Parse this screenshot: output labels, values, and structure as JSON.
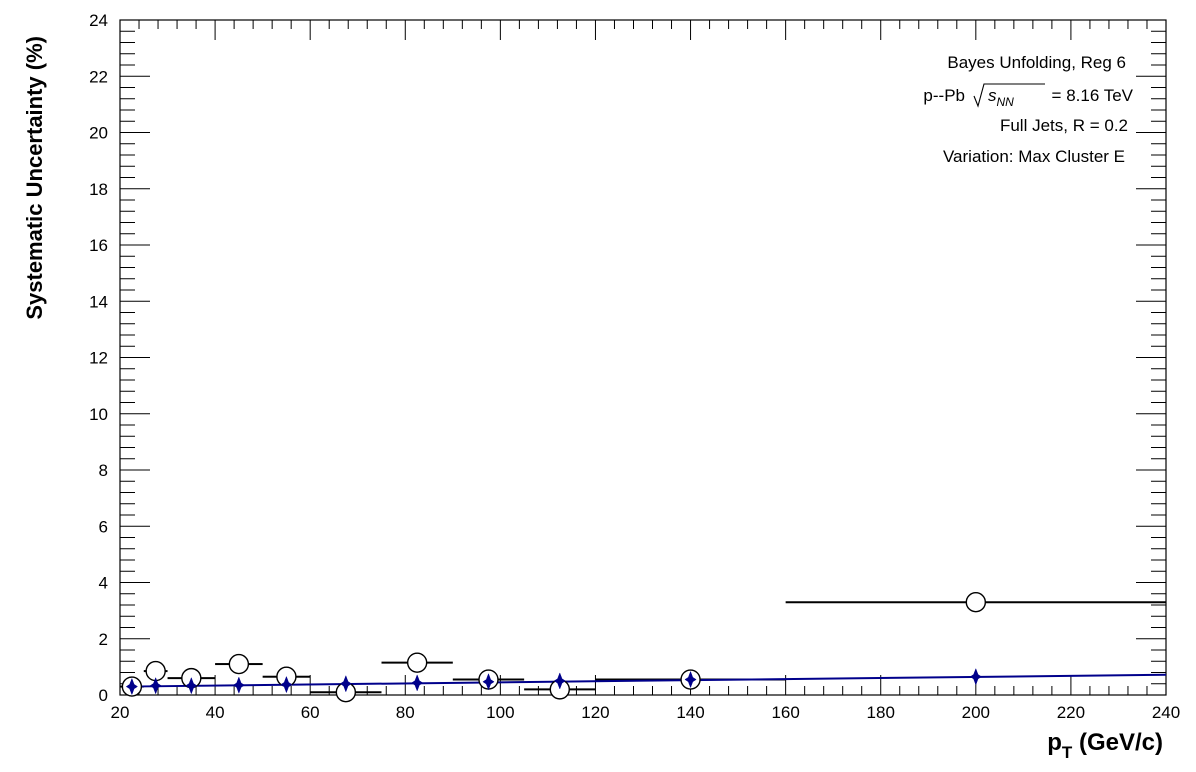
{
  "chart_data": {
    "type": "scatter",
    "xlabel_main": "p",
    "xlabel_sub": "T",
    "xlabel_unit": " (GeV/c)",
    "ylabel": "Systematic Uncertainty (%)",
    "xlim": [
      20,
      240
    ],
    "ylim": [
      0,
      24
    ],
    "xticks": [
      "20",
      "40",
      "60",
      "80",
      "100",
      "120",
      "140",
      "160",
      "180",
      "200",
      "220",
      "240"
    ],
    "yticks": [
      "0",
      "2",
      "4",
      "6",
      "8",
      "10",
      "12",
      "14",
      "16",
      "18",
      "20",
      "22",
      "24"
    ],
    "annotations": {
      "line1": "Bayes Unfolding, Reg 6",
      "line2_prefix": "p--Pb",
      "line2_sqrt_s": "s",
      "line2_sub": "NN",
      "line2_suffix": "= 8.16 TeV",
      "line3": "Full Jets, R = 0.2",
      "line4": "Variation: Max Cluster E"
    },
    "series": [
      {
        "marker": "open-circle",
        "color": "#000000",
        "points": [
          {
            "x": 22.5,
            "y": 0.3,
            "xlow": 20,
            "xhigh": 25
          },
          {
            "x": 27.5,
            "y": 0.85,
            "xlow": 25,
            "xhigh": 30
          },
          {
            "x": 35,
            "y": 0.6,
            "xlow": 30,
            "xhigh": 40
          },
          {
            "x": 45,
            "y": 1.1,
            "xlow": 40,
            "xhigh": 50
          },
          {
            "x": 55,
            "y": 0.65,
            "xlow": 50,
            "xhigh": 60
          },
          {
            "x": 67.5,
            "y": 0.1,
            "xlow": 60,
            "xhigh": 75
          },
          {
            "x": 82.5,
            "y": 1.15,
            "xlow": 75,
            "xhigh": 90
          },
          {
            "x": 97.5,
            "y": 0.55,
            "xlow": 90,
            "xhigh": 105
          },
          {
            "x": 112.5,
            "y": 0.2,
            "xlow": 105,
            "xhigh": 120
          },
          {
            "x": 140,
            "y": 0.55,
            "xlow": 120,
            "xhigh": 160
          },
          {
            "x": 200,
            "y": 3.3,
            "xlow": 160,
            "xhigh": 240
          }
        ]
      },
      {
        "marker": "filled-star",
        "color": "#00008b",
        "points": [
          {
            "x": 22.5,
            "y": 0.3
          },
          {
            "x": 27.5,
            "y": 0.33
          },
          {
            "x": 35,
            "y": 0.33
          },
          {
            "x": 45,
            "y": 0.35
          },
          {
            "x": 55,
            "y": 0.37
          },
          {
            "x": 67.5,
            "y": 0.4
          },
          {
            "x": 82.5,
            "y": 0.43
          },
          {
            "x": 97.5,
            "y": 0.47
          },
          {
            "x": 112.5,
            "y": 0.5
          },
          {
            "x": 140,
            "y": 0.55
          },
          {
            "x": 200,
            "y": 0.65
          }
        ]
      }
    ],
    "fit_line": {
      "color": "#00008b",
      "x": [
        22,
        240
      ],
      "y": [
        0.3,
        0.72
      ]
    }
  }
}
